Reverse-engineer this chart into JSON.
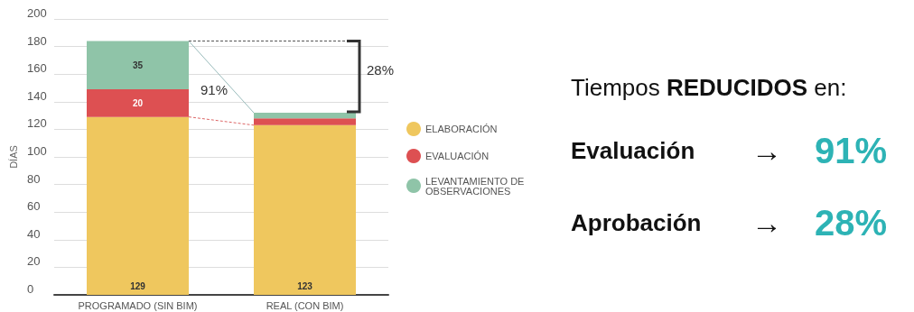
{
  "chart_data": {
    "type": "bar",
    "stacked": true,
    "ylabel": "DÍAS",
    "categories": [
      "PROGRAMADO (SIN BIM)",
      "REAL (CON BIM)"
    ],
    "series": [
      {
        "name": "ELABORACIÓN",
        "color": "#efc75e",
        "values": [
          129,
          123
        ],
        "value_labels": [
          "129",
          "123"
        ]
      },
      {
        "name": "EVALUACIÓN",
        "color": "#dd5052",
        "values": [
          20,
          5
        ],
        "value_labels": [
          "20",
          null
        ]
      },
      {
        "name": "LEVANTAMIENTO DE OBSERVACIONES",
        "color": "#8fc4a8",
        "values": [
          35,
          4
        ],
        "value_labels": [
          "35",
          null
        ]
      }
    ],
    "ref_lines": [
      {
        "axis": "y",
        "value": 184,
        "color": "#555555",
        "line_style": "dashed"
      }
    ],
    "ylim": [
      0,
      200
    ],
    "yticks": [
      0,
      20,
      40,
      60,
      80,
      100,
      120,
      140,
      160,
      180,
      200
    ],
    "grid": "y",
    "legend": "right",
    "marker": "circle",
    "annotations": [
      "91%",
      "28%",
      "Tiempos REDUCIDOS en:",
      "Evaluación → 91%",
      "Aprobación → 28%"
    ]
  }
}
